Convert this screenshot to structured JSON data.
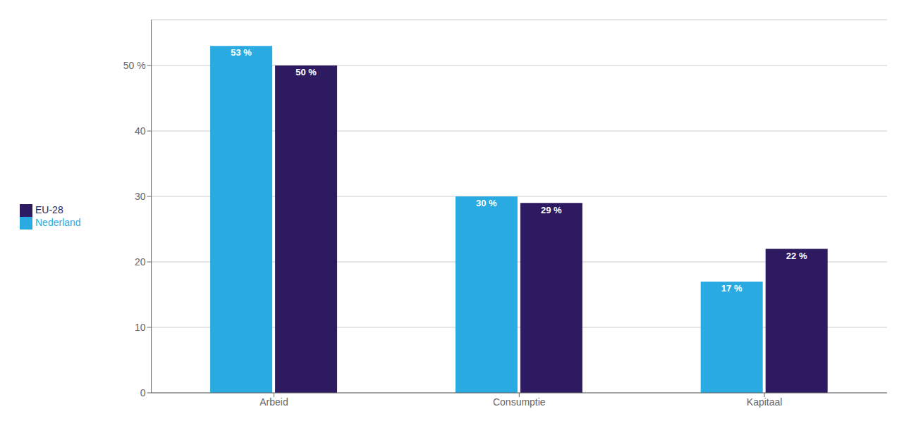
{
  "chart_data": {
    "type": "bar",
    "categories": [
      "Arbeid",
      "Consumptie",
      "Kapitaal"
    ],
    "series": [
      {
        "name": "Nederland",
        "color": "#29ABE2",
        "values": [
          53,
          30,
          17
        ],
        "value_labels": [
          "53 %",
          "30 %",
          "17 %"
        ]
      },
      {
        "name": "EU-28",
        "color": "#2E1A60",
        "values": [
          50,
          29,
          22
        ],
        "value_labels": [
          "50 %",
          "29 %",
          "22 %"
        ]
      }
    ],
    "ylim": [
      0,
      57
    ],
    "yticks": [
      0,
      10,
      20,
      30,
      40,
      {
        "value": 50,
        "label": "50 %"
      }
    ],
    "grid": true,
    "legend": "left",
    "data_labels": true
  }
}
